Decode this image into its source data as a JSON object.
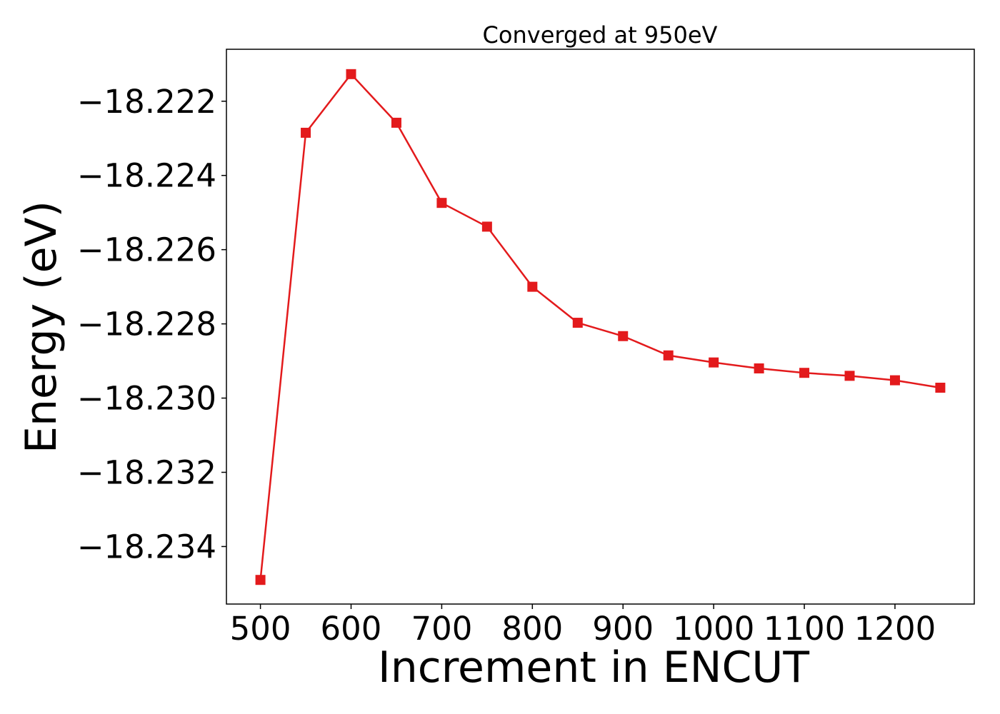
{
  "chart_data": {
    "type": "line",
    "title": "Converged at 950eV",
    "xlabel": "Increment in ENCUT",
    "ylabel": "Energy (eV)",
    "x_ticks": [
      "500",
      "600",
      "700",
      "800",
      "900",
      "1000",
      "1100",
      "1200"
    ],
    "y_ticks": [
      "−18.222",
      "−18.224",
      "−18.226",
      "−18.228",
      "−18.230",
      "−18.232",
      "−18.234"
    ],
    "xlim": [
      462.5,
      1287.5
    ],
    "ylim": [
      -18.23555,
      -18.2206
    ],
    "grid": false,
    "line_color": "#e31a1c",
    "marker": "square",
    "series": [
      {
        "x": [
          500,
          550,
          600,
          650,
          700,
          750,
          800,
          850,
          900,
          950,
          1000,
          1050,
          1100,
          1150,
          1200,
          1250
        ],
        "values": [
          -18.2349,
          -18.22285,
          -18.22127,
          -18.22258,
          -18.22474,
          -18.22538,
          -18.227,
          -18.22797,
          -18.22833,
          -18.22885,
          -18.22904,
          -18.2292,
          -18.22932,
          -18.2294,
          -18.22952,
          -18.22972
        ]
      }
    ]
  }
}
